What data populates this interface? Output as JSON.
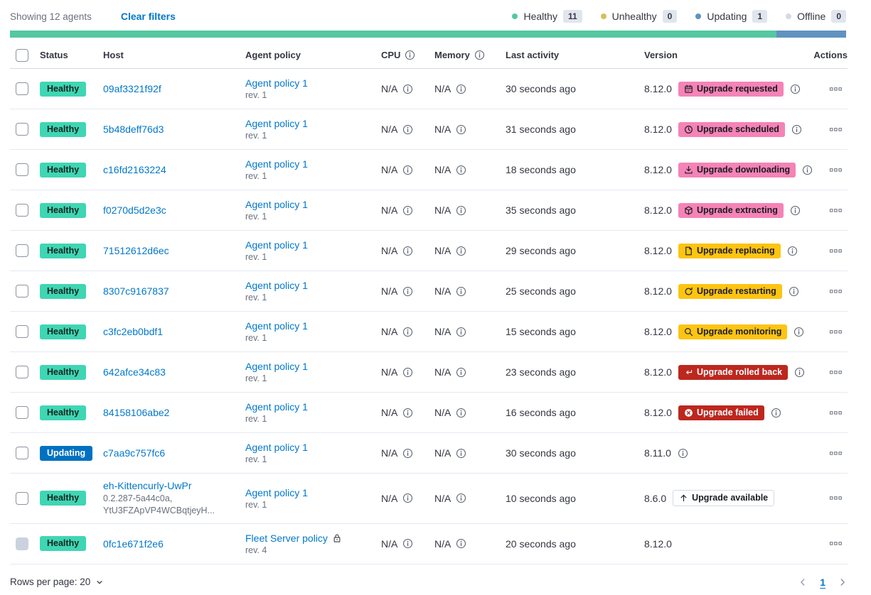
{
  "toolbar": {
    "showing_text": "Showing 12 agents",
    "clear_filters_label": "Clear filters",
    "legend": [
      {
        "label": "Healthy",
        "count": "11",
        "color": "#54C8A0"
      },
      {
        "label": "Unhealthy",
        "count": "0",
        "color": "#D6BF57"
      },
      {
        "label": "Updating",
        "count": "1",
        "color": "#6092C0"
      },
      {
        "label": "Offline",
        "count": "0",
        "color": "#D3DAE6"
      }
    ]
  },
  "status_bar": {
    "segments": [
      {
        "status": "healthy",
        "color": "#54C8A0",
        "fraction": 0.9167
      },
      {
        "status": "updating",
        "color": "#6092C0",
        "fraction": 0.0833
      }
    ]
  },
  "table": {
    "headers": {
      "status": "Status",
      "host": "Host",
      "policy": "Agent policy",
      "cpu": "CPU",
      "memory": "Memory",
      "last_activity": "Last activity",
      "version": "Version",
      "actions": "Actions"
    },
    "rows": [
      {
        "status": "Healthy",
        "status_type": "healthy",
        "host": "09af3321f92f",
        "host_sub": [],
        "policy": "Agent policy 1",
        "policy_rev": "rev. 1",
        "policy_locked": false,
        "cpu": "N/A",
        "memory": "N/A",
        "last_activity": "30 seconds ago",
        "version": "8.12.0",
        "upgrade": {
          "label": "Upgrade requested",
          "style": "accent",
          "icon": "calendar-icon"
        },
        "version_info": true,
        "checkbox_disabled": false
      },
      {
        "status": "Healthy",
        "status_type": "healthy",
        "host": "5b48deff76d3",
        "host_sub": [],
        "policy": "Agent policy 1",
        "policy_rev": "rev. 1",
        "policy_locked": false,
        "cpu": "N/A",
        "memory": "N/A",
        "last_activity": "31 seconds ago",
        "version": "8.12.0",
        "upgrade": {
          "label": "Upgrade scheduled",
          "style": "accent",
          "icon": "clock-icon"
        },
        "version_info": true,
        "checkbox_disabled": false
      },
      {
        "status": "Healthy",
        "status_type": "healthy",
        "host": "c16fd2163224",
        "host_sub": [],
        "policy": "Agent policy 1",
        "policy_rev": "rev. 1",
        "policy_locked": false,
        "cpu": "N/A",
        "memory": "N/A",
        "last_activity": "18 seconds ago",
        "version": "8.12.0",
        "upgrade": {
          "label": "Upgrade downloading",
          "style": "accent",
          "icon": "download-icon"
        },
        "version_info": true,
        "checkbox_disabled": false
      },
      {
        "status": "Healthy",
        "status_type": "healthy",
        "host": "f0270d5d2e3c",
        "host_sub": [],
        "policy": "Agent policy 1",
        "policy_rev": "rev. 1",
        "policy_locked": false,
        "cpu": "N/A",
        "memory": "N/A",
        "last_activity": "35 seconds ago",
        "version": "8.12.0",
        "upgrade": {
          "label": "Upgrade extracting",
          "style": "accent",
          "icon": "package-icon"
        },
        "version_info": true,
        "checkbox_disabled": false
      },
      {
        "status": "Healthy",
        "status_type": "healthy",
        "host": "71512612d6ec",
        "host_sub": [],
        "policy": "Agent policy 1",
        "policy_rev": "rev. 1",
        "policy_locked": false,
        "cpu": "N/A",
        "memory": "N/A",
        "last_activity": "29 seconds ago",
        "version": "8.12.0",
        "upgrade": {
          "label": "Upgrade replacing",
          "style": "warning",
          "icon": "document-icon"
        },
        "version_info": true,
        "checkbox_disabled": false
      },
      {
        "status": "Healthy",
        "status_type": "healthy",
        "host": "8307c9167837",
        "host_sub": [],
        "policy": "Agent policy 1",
        "policy_rev": "rev. 1",
        "policy_locked": false,
        "cpu": "N/A",
        "memory": "N/A",
        "last_activity": "25 seconds ago",
        "version": "8.12.0",
        "upgrade": {
          "label": "Upgrade restarting",
          "style": "warning",
          "icon": "refresh-icon"
        },
        "version_info": true,
        "checkbox_disabled": false
      },
      {
        "status": "Healthy",
        "status_type": "healthy",
        "host": "c3fc2eb0bdf1",
        "host_sub": [],
        "policy": "Agent policy 1",
        "policy_rev": "rev. 1",
        "policy_locked": false,
        "cpu": "N/A",
        "memory": "N/A",
        "last_activity": "15 seconds ago",
        "version": "8.12.0",
        "upgrade": {
          "label": "Upgrade monitoring",
          "style": "warning",
          "icon": "inspect-icon"
        },
        "version_info": true,
        "checkbox_disabled": false
      },
      {
        "status": "Healthy",
        "status_type": "healthy",
        "host": "642afce34c83",
        "host_sub": [],
        "policy": "Agent policy 1",
        "policy_rev": "rev. 1",
        "policy_locked": false,
        "cpu": "N/A",
        "memory": "N/A",
        "last_activity": "23 seconds ago",
        "version": "8.12.0",
        "upgrade": {
          "label": "Upgrade rolled back",
          "style": "danger",
          "icon": "return-arrow-icon"
        },
        "version_info": true,
        "checkbox_disabled": false
      },
      {
        "status": "Healthy",
        "status_type": "healthy",
        "host": "84158106abe2",
        "host_sub": [],
        "policy": "Agent policy 1",
        "policy_rev": "rev. 1",
        "policy_locked": false,
        "cpu": "N/A",
        "memory": "N/A",
        "last_activity": "16 seconds ago",
        "version": "8.12.0",
        "upgrade": {
          "label": "Upgrade failed",
          "style": "danger",
          "icon": "cross-circle-icon"
        },
        "version_info": true,
        "checkbox_disabled": false
      },
      {
        "status": "Updating",
        "status_type": "updating",
        "host": "c7aa9c757fc6",
        "host_sub": [],
        "policy": "Agent policy 1",
        "policy_rev": "rev. 1",
        "policy_locked": false,
        "cpu": "N/A",
        "memory": "N/A",
        "last_activity": "30 seconds ago",
        "version": "8.11.0",
        "upgrade": null,
        "version_info": true,
        "checkbox_disabled": false
      },
      {
        "status": "Healthy",
        "status_type": "healthy",
        "host": "eh-Kittencurly-UwPr",
        "host_sub": [
          "0.2.287-5a44c0a,",
          "YtU3FZApVP4WCBqtjeyH..."
        ],
        "policy": "Agent policy 1",
        "policy_rev": "rev. 1",
        "policy_locked": false,
        "cpu": "N/A",
        "memory": "N/A",
        "last_activity": "10 seconds ago",
        "version": "8.6.0",
        "upgrade": {
          "label": "Upgrade available",
          "style": "hollow",
          "icon": "arrow-up-icon"
        },
        "version_info": false,
        "checkbox_disabled": false
      },
      {
        "status": "Healthy",
        "status_type": "healthy",
        "host": "0fc1e671f2e6",
        "host_sub": [],
        "policy": "Fleet Server policy",
        "policy_rev": "rev. 4",
        "policy_locked": true,
        "cpu": "N/A",
        "memory": "N/A",
        "last_activity": "20 seconds ago",
        "version": "8.12.0",
        "upgrade": null,
        "version_info": false,
        "checkbox_disabled": true
      }
    ]
  },
  "footer": {
    "rows_per_page_label": "Rows per page: 20",
    "current_page": "1"
  },
  "colors": {
    "link_blue": "#0077CC",
    "healthy_badge": "#3FD6B3",
    "updating_badge": "#0071C2",
    "accent_badge": "#F583B7",
    "warning_badge": "#FDC411",
    "danger_badge": "#BD271E"
  }
}
